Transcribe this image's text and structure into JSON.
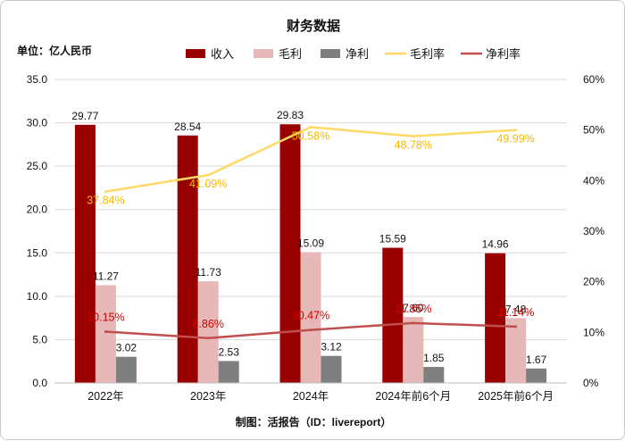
{
  "chart_data": {
    "type": "bar",
    "title": "财务数据",
    "unit_label": "单位：亿人民币",
    "source": "制图：活报告（ID：livereport）",
    "categories": [
      "2022年",
      "2023年",
      "2024年",
      "2024年前6个月",
      "2025年前6个月"
    ],
    "left_axis": {
      "min": 0,
      "max": 35,
      "step": 5,
      "ticks": [
        "0.0",
        "5.0",
        "10.0",
        "15.0",
        "20.0",
        "25.0",
        "30.0",
        "35.0"
      ]
    },
    "right_axis": {
      "min": 0,
      "max": 60,
      "step": 10,
      "ticks": [
        "0%",
        "10%",
        "20%",
        "30%",
        "40%",
        "50%",
        "60%"
      ]
    },
    "bar_series": [
      {
        "name": "收入",
        "color": "#990000",
        "values": [
          29.77,
          28.54,
          29.83,
          15.59,
          14.96
        ],
        "labels": [
          "29.77",
          "28.54",
          "29.83",
          "15.59",
          "14.96"
        ]
      },
      {
        "name": "毛利",
        "color": "#e6b8b7",
        "values": [
          11.27,
          11.73,
          15.09,
          7.6,
          7.48
        ],
        "labels": [
          "11.27",
          "11.73",
          "15.09",
          "7.60",
          "7.48"
        ]
      },
      {
        "name": "净利",
        "color": "#7f7f7f",
        "values": [
          3.02,
          2.53,
          3.12,
          1.85,
          1.67
        ],
        "labels": [
          "3.02",
          "2.53",
          "3.12",
          "1.85",
          "1.67"
        ]
      }
    ],
    "line_series": [
      {
        "name": "毛利率",
        "color": "#ffd966",
        "label_color": "#f5b800",
        "values": [
          37.84,
          41.09,
          50.58,
          48.78,
          49.99
        ],
        "labels": [
          "37.84%",
          "41.09%",
          "50.58%",
          "48.78%",
          "49.99%"
        ]
      },
      {
        "name": "净利率",
        "color": "#c0504d",
        "label_color": "#cc0000",
        "values": [
          10.15,
          8.86,
          10.47,
          11.85,
          11.14
        ],
        "labels": [
          "10.15%",
          "8.86%",
          "10.47%",
          "11.85%",
          "11.14%"
        ]
      }
    ]
  }
}
